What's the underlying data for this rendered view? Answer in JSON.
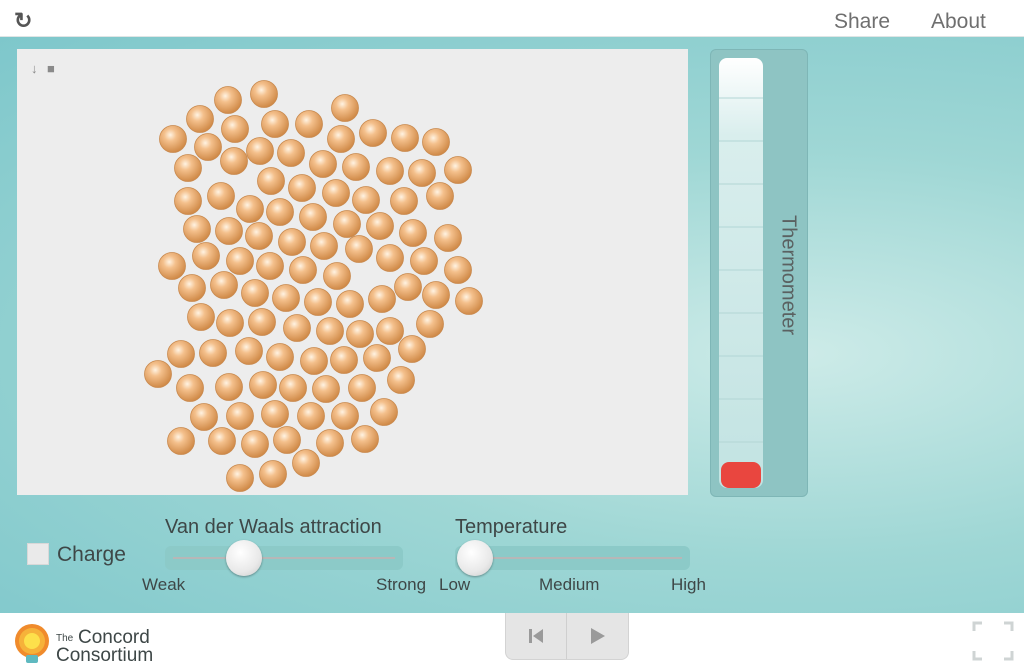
{
  "header": {
    "reload_icon": "reload-icon",
    "share_label": "Share",
    "about_label": "About"
  },
  "simulation": {
    "tools": [
      "thermometer-tool-icon",
      "lock-icon"
    ],
    "particle_color": "#e8a86a",
    "background_color": "#ededed"
  },
  "thermometer": {
    "label": "Thermometer",
    "bulb_color": "#e9463f"
  },
  "controls": {
    "charge": {
      "label": "Charge",
      "checked": false
    },
    "vdw": {
      "title": "Van der Waals attraction",
      "min_label": "Weak",
      "max_label": "Strong",
      "value": 0.3
    },
    "temperature": {
      "title": "Temperature",
      "low_label": "Low",
      "mid_label": "Medium",
      "high_label": "High",
      "value": 0.0
    }
  },
  "footer": {
    "logo_the": "The",
    "logo_concord": "Concord",
    "logo_consortium": "Consortium",
    "reset_icon": "skip-back-icon",
    "play_icon": "play-icon",
    "fullscreen_icon": "fullscreen-icon"
  }
}
